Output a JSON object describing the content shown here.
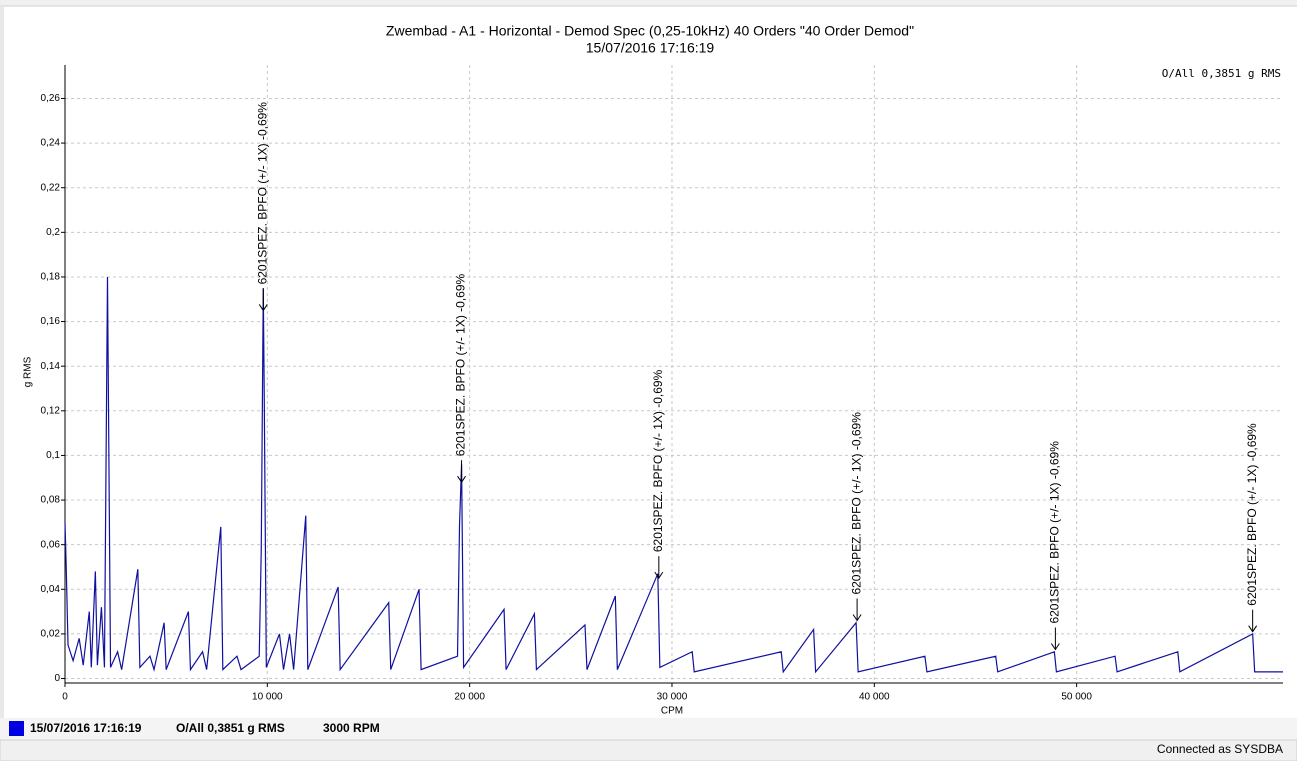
{
  "chart_data": {
    "type": "line",
    "title": "Zwembad - A1 - Horizontal - Demod Spec (0,25-10kHz) 40 Orders \"40 Order Demod\"",
    "subtitle": "15/07/2016 17:16:19",
    "overall_label": "O/All 0,3851 g RMS",
    "ylabel": "g RMS",
    "xlabel": "CPM",
    "xlim": [
      0,
      60200
    ],
    "ylim": [
      -0.002,
      0.275
    ],
    "xticks": [
      0,
      {
        "value": 10000,
        "label": "10 000"
      },
      {
        "value": 20000,
        "label": "20 000"
      },
      {
        "value": 30000,
        "label": "30 000"
      },
      {
        "value": 40000,
        "label": "40 000"
      },
      {
        "value": 50000,
        "label": "50 000"
      }
    ],
    "yticks": [
      0,
      {
        "value": 0.02,
        "label": "0,02"
      },
      {
        "value": 0.04,
        "label": "0,04"
      },
      {
        "value": 0.06,
        "label": "0,06"
      },
      {
        "value": 0.08,
        "label": "0,08"
      },
      {
        "value": 0.1,
        "label": "0,1"
      },
      {
        "value": 0.12,
        "label": "0,12"
      },
      {
        "value": 0.14,
        "label": "0,14"
      },
      {
        "value": 0.16,
        "label": "0,16"
      },
      {
        "value": 0.18,
        "label": "0,18"
      },
      {
        "value": 0.2,
        "label": "0,2"
      },
      {
        "value": 0.22,
        "label": "0,22"
      },
      {
        "value": 0.24,
        "label": "0,24"
      },
      {
        "value": 0.26,
        "label": "0,26"
      }
    ],
    "grid": true,
    "x": [
      0,
      60,
      150,
      400,
      700,
      900,
      1200,
      1300,
      1500,
      1600,
      1800,
      1950,
      2100,
      2150,
      2250,
      2600,
      2800,
      3600,
      3700,
      4200,
      4400,
      4900,
      5000,
      6100,
      6200,
      6800,
      7000,
      7700,
      7800,
      8500,
      8700,
      9600,
      9700,
      9800,
      9850,
      9950,
      10600,
      10800,
      11100,
      11300,
      11900,
      12000,
      13500,
      13600,
      16000,
      16100,
      17500,
      17600,
      19400,
      19500,
      19600,
      19700,
      21700,
      21800,
      23200,
      23300,
      25700,
      25800,
      27200,
      27300,
      29300,
      29400,
      31000,
      31100,
      35400,
      35500,
      37000,
      37100,
      39100,
      39200,
      42500,
      42600,
      46000,
      46100,
      48900,
      49000,
      51900,
      52000,
      55000,
      55100,
      58700,
      58800,
      60200
    ],
    "series": [
      {
        "name": "15/07/2016 17:16:19",
        "color": "#1010a0",
        "values": [
          0.07,
          0.05,
          0.015,
          0.008,
          0.018,
          0.006,
          0.03,
          0.005,
          0.048,
          0.006,
          0.032,
          0.005,
          0.18,
          0.122,
          0.005,
          0.012,
          0.004,
          0.049,
          0.005,
          0.01,
          0.004,
          0.025,
          0.004,
          0.03,
          0.004,
          0.012,
          0.004,
          0.068,
          0.004,
          0.01,
          0.004,
          0.01,
          0.058,
          0.175,
          0.124,
          0.005,
          0.02,
          0.004,
          0.02,
          0.004,
          0.073,
          0.004,
          0.041,
          0.004,
          0.034,
          0.004,
          0.04,
          0.004,
          0.01,
          0.069,
          0.096,
          0.005,
          0.031,
          0.004,
          0.029,
          0.004,
          0.024,
          0.004,
          0.037,
          0.004,
          0.047,
          0.005,
          0.012,
          0.003,
          0.012,
          0.003,
          0.022,
          0.003,
          0.025,
          0.003,
          0.01,
          0.003,
          0.01,
          0.003,
          0.012,
          0.003,
          0.01,
          0.003,
          0.012,
          0.003,
          0.02,
          0.003,
          0.003
        ]
      }
    ],
    "annotations": [
      {
        "text": "6201SPEZ. BPFO (+/- 1X) -0,69%",
        "x": 9800,
        "y": 0.165
      },
      {
        "text": "6201SPEZ. BPFO (+/- 1X) -0,69%",
        "x": 19600,
        "y": 0.088
      },
      {
        "text": "6201SPEZ. BPFO (+/- 1X) -0,69%",
        "x": 29350,
        "y": 0.045
      },
      {
        "text": "6201SPEZ. BPFO (+/- 1X) -0,69%",
        "x": 39150,
        "y": 0.026
      },
      {
        "text": "6201SPEZ. BPFO (+/- 1X) -0,69%",
        "x": 48950,
        "y": 0.013
      },
      {
        "text": "6201SPEZ. BPFO (+/- 1X) -0,69%",
        "x": 58700,
        "y": 0.021
      }
    ],
    "legend_overall": "O/All 0,3851 g RMS",
    "legend_rpm": "3000 RPM",
    "status": "Connected as SYSDBA"
  }
}
